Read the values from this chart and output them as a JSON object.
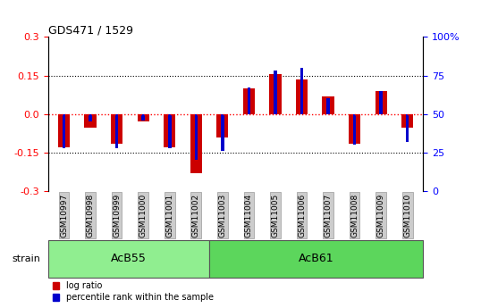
{
  "title": "GDS471 / 1529",
  "samples": [
    "GSM10997",
    "GSM10998",
    "GSM10999",
    "GSM11000",
    "GSM11001",
    "GSM11002",
    "GSM11003",
    "GSM11004",
    "GSM11005",
    "GSM11006",
    "GSM11007",
    "GSM11008",
    "GSM11009",
    "GSM11010"
  ],
  "log_ratio": [
    -0.13,
    -0.055,
    -0.115,
    -0.03,
    -0.13,
    -0.23,
    -0.09,
    0.1,
    0.155,
    0.135,
    0.07,
    -0.115,
    0.09,
    -0.055
  ],
  "percentile_rank": [
    28,
    45,
    28,
    46,
    28,
    20,
    26,
    67,
    78,
    80,
    60,
    30,
    65,
    32
  ],
  "groups": [
    {
      "label": "AcB55",
      "start": 0,
      "end": 6,
      "color": "#90EE90"
    },
    {
      "label": "AcB61",
      "start": 6,
      "end": 14,
      "color": "#5CD65C"
    }
  ],
  "ylim": [
    -0.3,
    0.3
  ],
  "yticks_left": [
    -0.3,
    -0.15,
    0.0,
    0.15,
    0.3
  ],
  "yticks_right": [
    0,
    25,
    50,
    75,
    100
  ],
  "bar_color_red": "#CC0000",
  "bar_color_blue": "#0000CC",
  "bg_color": "#FFFFFF",
  "tick_bg": "#CCCCCC",
  "tick_edge": "#999999",
  "group_label_strain": "strain",
  "legend_log_ratio": "log ratio",
  "legend_percentile": "percentile rank within the sample",
  "n_samples": 14,
  "n_acb55": 6
}
